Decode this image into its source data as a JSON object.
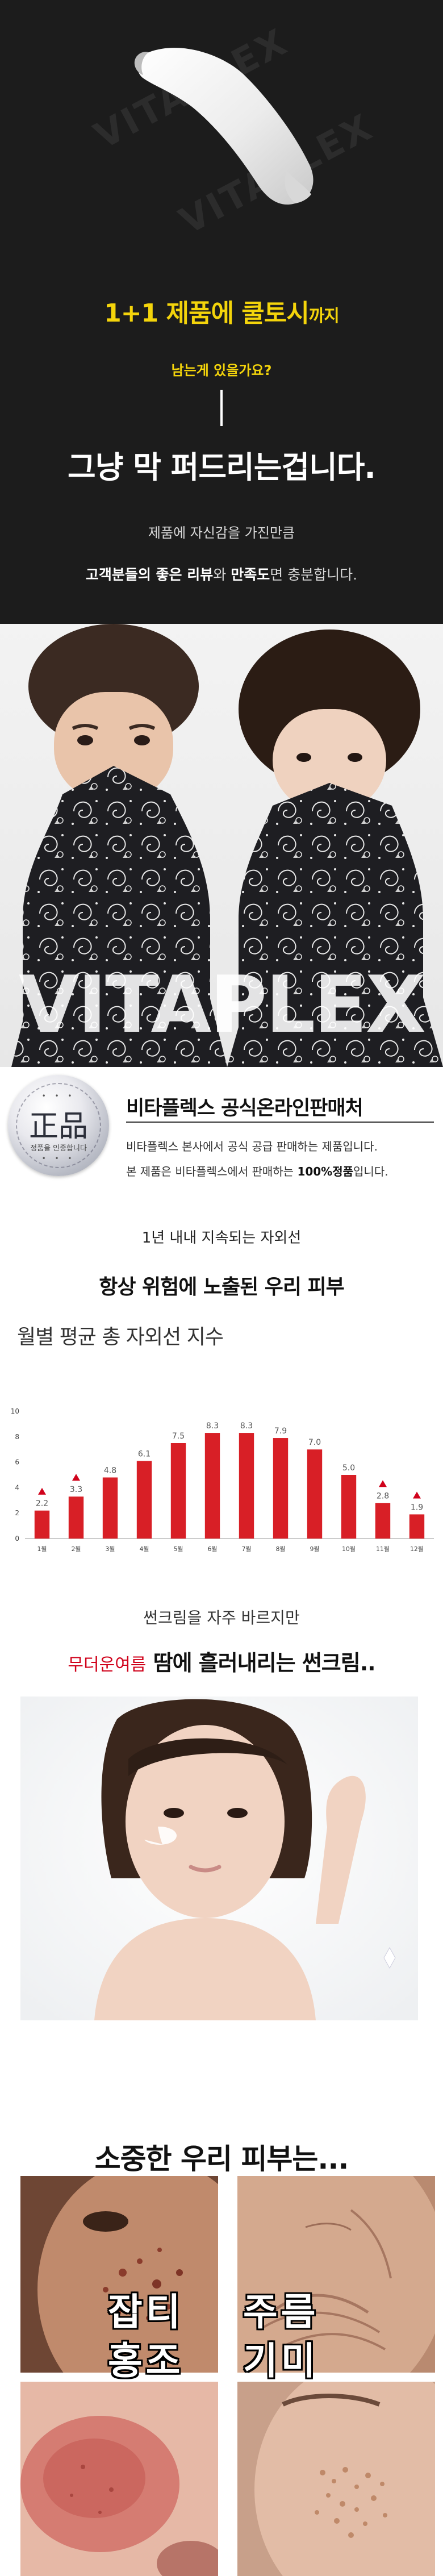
{
  "hero": {
    "watermark": "VITAPLEX",
    "headline_main": "1+1 제품에 쿨토시",
    "headline_small": "까지",
    "question": "남는게 있을가요?",
    "big_line": "그냥 막 퍼드리는겁니다.",
    "p1": "제품에 자신감을 가진만큼",
    "p2_b1": "고객분들의 좋은 리뷰",
    "p2_mid": "와 ",
    "p2_b2": "만족도",
    "p2_end": "면 충분합니다."
  },
  "models": {
    "watermark": "VITAPLEX"
  },
  "official": {
    "seal_hanja": "正品",
    "seal_sub": "정품을 인증합니다",
    "title": "비타플렉스 공식온라인판매처",
    "line1": "비타플렉스 본사에서 공식 공급 판매하는 제품입니다.",
    "line2_pre": "본 제품은 비타플렉스에서 판매하는 ",
    "line2_bold": "100%정품",
    "line2_end": "입니다."
  },
  "uv": {
    "subtitle": "1년 내내 지속되는 자외선",
    "title": "항상 위험에 노출된 우리 피부",
    "chart_title": "월별 평균 총 자외선 지수"
  },
  "chart_data": {
    "type": "bar",
    "title": "월별 평균 총 자외선 지수",
    "categories": [
      "1월",
      "2월",
      "3월",
      "4월",
      "5월",
      "6월",
      "7월",
      "8월",
      "9월",
      "10월",
      "11월",
      "12월"
    ],
    "values": [
      2.2,
      3.3,
      4.8,
      6.1,
      7.5,
      8.3,
      8.3,
      7.9,
      7.0,
      5.0,
      2.8,
      1.9
    ],
    "yticks": [
      "0",
      "2",
      "4",
      "6",
      "8",
      "10"
    ],
    "ylim": [
      0,
      10
    ],
    "grid": false,
    "bar_color": "#d81f26",
    "highlight_color": "#d0021b"
  },
  "sun": {
    "subtitle": "썬크림을 자주 바르지만",
    "head_red": "무더운여름",
    "head_main": " 땀에 흘러내리는 썬크림.."
  },
  "skin": {
    "title": "소중한 우리 피부는...",
    "labels": [
      "잡티",
      "주름",
      "홍조",
      "기미"
    ]
  }
}
